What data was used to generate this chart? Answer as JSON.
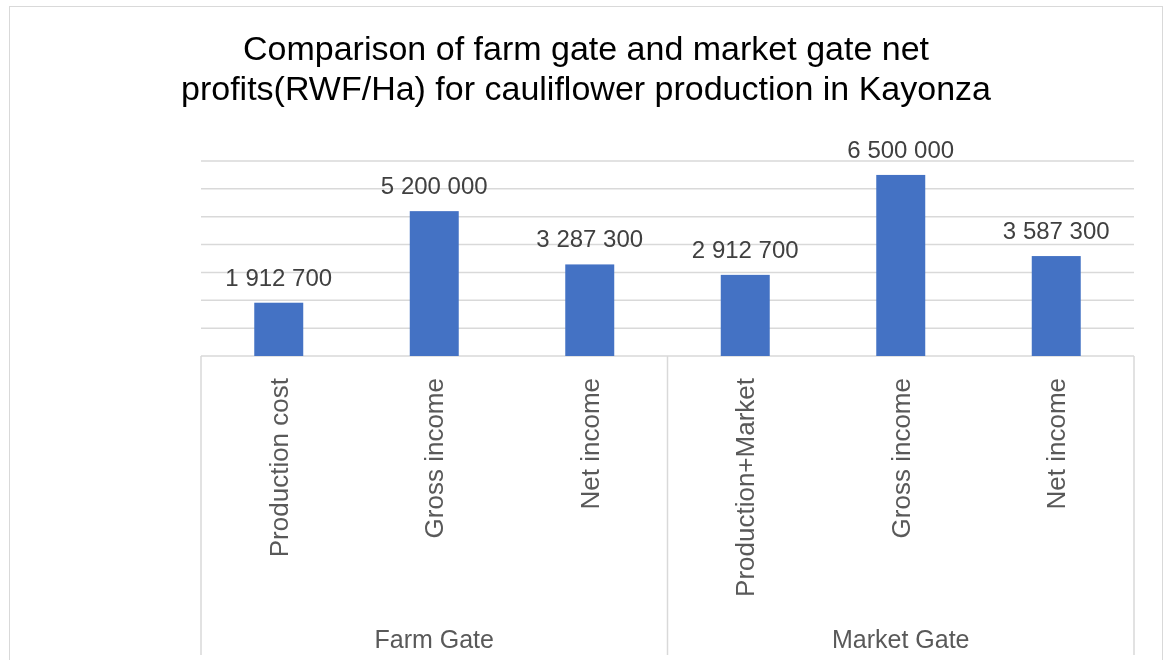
{
  "chart_data": {
    "type": "bar",
    "title": "Comparison of farm gate and market gate net profits(RWF/Ha) for cauliflower production in Kayonza",
    "categories": [
      "Production cost",
      "Gross income",
      "Net income",
      "Production+Market",
      "Gross income",
      "Net income"
    ],
    "values": [
      1912700,
      5200000,
      3287300,
      2912700,
      6500000,
      3587300
    ],
    "value_labels": [
      "1 912 700",
      "5 200 000",
      "3 287 300",
      "2 912 700",
      "6 500 000",
      "3 587 300"
    ],
    "color": "#4472c4",
    "ylim": [
      0,
      7000000
    ],
    "yticks": [
      {
        "value": 0,
        "label": null
      },
      {
        "value": 1000000,
        "label": null
      },
      {
        "value": 2000000,
        "label": null
      },
      {
        "value": 3000000,
        "label": null
      },
      {
        "value": 4000000,
        "label": null
      },
      {
        "value": 5000000,
        "label": null
      },
      {
        "value": 6000000,
        "label": null
      },
      {
        "value": 7000000,
        "label": null
      }
    ],
    "grid": "y",
    "tick_labels": "x",
    "annotations": [
      "Farm Gate",
      "Market Gate"
    ]
  }
}
